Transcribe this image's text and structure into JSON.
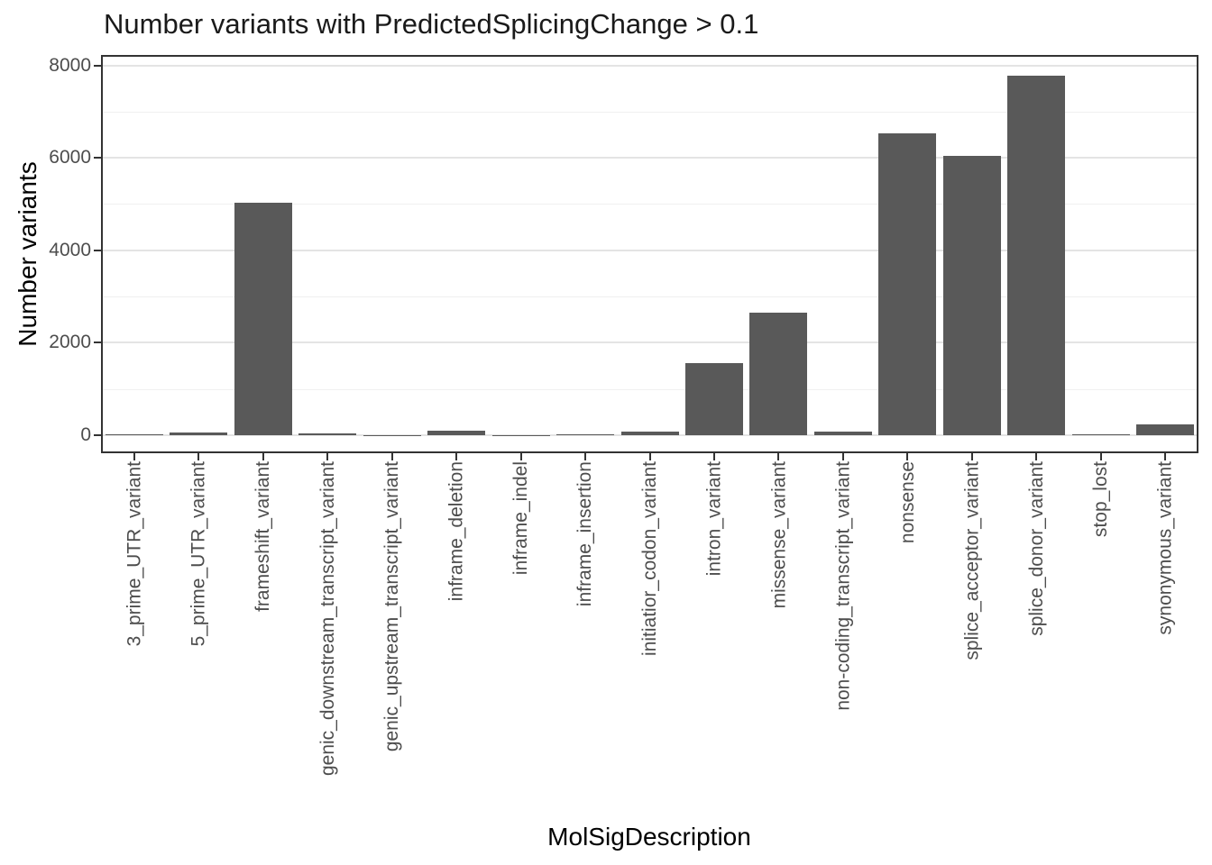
{
  "chart_data": {
    "type": "bar",
    "title": "Number variants with PredictedSplicingChange > 0.1",
    "xlabel": "MolSigDescription",
    "ylabel": "Number variants",
    "categories": [
      "3_prime_UTR_variant",
      "5_prime_UTR_variant",
      "frameshift_variant",
      "genic_downstream_transcript_variant",
      "genic_upstream_transcript_variant",
      "inframe_deletion",
      "inframe_indel",
      "inframe_insertion",
      "initiatior_codon_variant",
      "intron_variant",
      "missense_variant",
      "non-coding_transcript_variant",
      "nonsense",
      "splice_acceptor_variant",
      "splice_donor_variant",
      "stop_lost",
      "synonymous_variant"
    ],
    "values": [
      25,
      60,
      5030,
      30,
      4,
      90,
      4,
      25,
      85,
      1560,
      2650,
      70,
      6530,
      6040,
      7780,
      25,
      230
    ],
    "y_ticks": [
      0,
      2000,
      4000,
      6000,
      8000
    ],
    "y_minor_ticks": [
      1000,
      3000,
      5000,
      7000
    ],
    "ylim": [
      0,
      8200
    ],
    "grid": "major+minor",
    "legend_position": "none",
    "bar_color": "#595959",
    "panel_border_color": "#333333",
    "major_grid_color": "#e4e4e4",
    "minor_grid_color": "#f0f0f0",
    "tick_label_color": "#4d4d4d",
    "axis_title_color": "#000000",
    "title_color": "#1a1a1a",
    "background_color": "#ffffff"
  }
}
